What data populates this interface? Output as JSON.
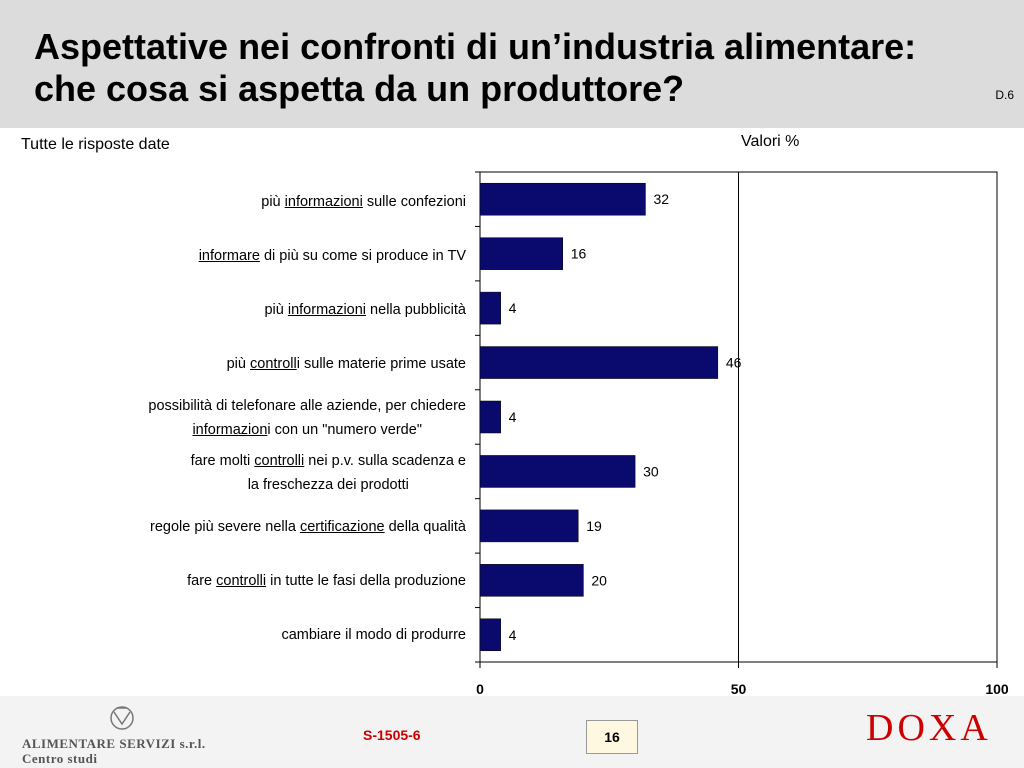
{
  "header": {
    "title_line1": "Aspettative nei confronti di un’industria alimentare:",
    "title_line2": "che cosa si aspetta da un produttore?",
    "code": "D.6"
  },
  "subtitle": "Tutte le risposte date",
  "units": "Valori %",
  "labels": [
    {
      "pre": "più ",
      "u": "informazioni",
      "post": " sulle confezioni"
    },
    {
      "pre": "",
      "u": "informare",
      "post": " di più su come si produce in TV"
    },
    {
      "pre": "più ",
      "u": "informazioni",
      "post": " nella pubblicità"
    },
    {
      "pre": "più ",
      "u": "controll",
      "post": "i sulle materie prime usate"
    },
    {
      "line1": "possibilità di telefonare alle aziende, per chiedere",
      "pre": "",
      "u": "informazion",
      "post": "i con un \"numero verde\""
    },
    {
      "line1_pre": "fare molti ",
      "line1_u": "controlli",
      "line1_post": " nei p.v. sulla scadenza e",
      "line2": "la freschezza dei prodotti"
    },
    {
      "pre": "regole più severe nella ",
      "u": "certificazione",
      "post": " della qualità"
    },
    {
      "pre": "fare ",
      "u": "controlli",
      "post": " in tutte le fasi della produzione"
    },
    {
      "pre": "",
      "u": "",
      "post": "cambiare il modo di produrre"
    }
  ],
  "chart_data": {
    "type": "bar",
    "orientation": "horizontal",
    "categories": [
      "più informazioni sulle confezioni",
      "informare di più su come si produce in TV",
      "più informazioni nella pubblicità",
      "più controlli sulle materie prime usate",
      "possibilità di telefonare alle aziende, per chiedere informazioni con un \"numero verde\"",
      "fare molti controlli nei p.v. sulla scadenza e la freschezza dei prodotti",
      "regole più severe nella certificazione della qualità",
      "fare controlli in tutte le fasi della produzione",
      "cambiare il modo di produrre"
    ],
    "values": [
      32,
      16,
      4,
      46,
      4,
      30,
      19,
      20,
      4
    ],
    "xlim": [
      0,
      100
    ],
    "xticks": [
      "0",
      "50",
      "100"
    ],
    "grid": "vertical line at 50",
    "bar_color": "#0a0a6e"
  },
  "footer": {
    "company_line1": "ALIMENTARE SERVIZI s.r.l.",
    "company_line2": "Centro studi",
    "survey_code": "S-1505-6",
    "page": "16",
    "brand": "DOXA"
  }
}
